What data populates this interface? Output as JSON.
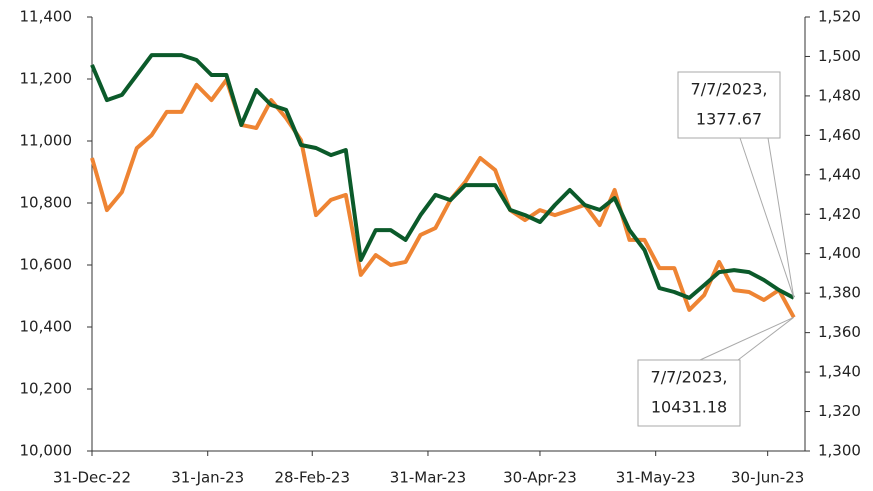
{
  "chart_data": {
    "type": "line",
    "x": [
      "2022-12-31",
      "2023-01-04",
      "2023-01-08",
      "2023-01-12",
      "2023-01-16",
      "2023-01-20",
      "2023-01-24",
      "2023-01-28",
      "2023-02-01",
      "2023-02-05",
      "2023-02-09",
      "2023-02-13",
      "2023-02-17",
      "2023-02-21",
      "2023-02-25",
      "2023-03-01",
      "2023-03-05",
      "2023-03-09",
      "2023-03-13",
      "2023-03-17",
      "2023-03-21",
      "2023-03-25",
      "2023-03-29",
      "2023-04-02",
      "2023-04-06",
      "2023-04-10",
      "2023-04-14",
      "2023-04-18",
      "2023-04-22",
      "2023-04-26",
      "2023-04-30",
      "2023-05-04",
      "2023-05-08",
      "2023-05-12",
      "2023-05-16",
      "2023-05-20",
      "2023-05-24",
      "2023-05-28",
      "2023-06-01",
      "2023-06-05",
      "2023-06-09",
      "2023-06-13",
      "2023-06-17",
      "2023-06-21",
      "2023-06-25",
      "2023-06-29",
      "2023-07-03",
      "2023-07-07"
    ],
    "series": [
      {
        "color": "#ee8433",
        "axis": "y",
        "values": [
          10945,
          10777,
          10835,
          10977,
          11019,
          11094,
          11094,
          11181,
          11132,
          11197,
          11052,
          11042,
          11132,
          11074,
          11003,
          10761,
          10810,
          10826,
          10568,
          10632,
          10600,
          10610,
          10697,
          10719,
          10810,
          10868,
          10945,
          10906,
          10777,
          10745,
          10777,
          10761,
          10777,
          10794,
          10729,
          10842,
          10681,
          10681,
          10590,
          10590,
          10455,
          10503,
          10610,
          10519,
          10513,
          10487,
          10519,
          10431.18
        ]
      },
      {
        "color": "#0b5a2a",
        "axis": "y2",
        "values": [
          1495.7,
          1477.9,
          1480.5,
          1490.6,
          1500.7,
          1500.7,
          1500.7,
          1498.2,
          1490.6,
          1490.6,
          1465.3,
          1483.0,
          1475.4,
          1472.9,
          1455.1,
          1453.6,
          1450.0,
          1452.6,
          1396.8,
          1412.0,
          1412.0,
          1407.0,
          1419.6,
          1429.8,
          1427.2,
          1434.8,
          1434.8,
          1434.8,
          1422.2,
          1419.6,
          1416.1,
          1424.7,
          1432.3,
          1424.7,
          1422.2,
          1428.2,
          1412.0,
          1401.9,
          1382.6,
          1380.6,
          1377.6,
          1384.1,
          1390.7,
          1391.7,
          1390.7,
          1386.7,
          1381.6,
          1377.67
        ]
      }
    ],
    "xlim": [
      "2022-12-31",
      "2023-07-10"
    ],
    "xticks": [
      {
        "value": "2022-12-31",
        "label": "31-Dec-22"
      },
      {
        "value": "2023-01-31",
        "label": "31-Jan-23"
      },
      {
        "value": "2023-02-28",
        "label": "28-Feb-23"
      },
      {
        "value": "2023-03-31",
        "label": "31-Mar-23"
      },
      {
        "value": "2023-04-30",
        "label": "30-Apr-23"
      },
      {
        "value": "2023-05-31",
        "label": "31-May-23"
      },
      {
        "value": "2023-06-30",
        "label": "30-Jun-23"
      }
    ],
    "ylim": [
      10000,
      11400
    ],
    "yticks": [
      {
        "value": 10000,
        "label": "10,000"
      },
      {
        "value": 10200,
        "label": "10,200"
      },
      {
        "value": 10400,
        "label": "10,400"
      },
      {
        "value": 10600,
        "label": "10,600"
      },
      {
        "value": 10800,
        "label": "10,800"
      },
      {
        "value": 11000,
        "label": "11,000"
      },
      {
        "value": 11200,
        "label": "11,200"
      },
      {
        "value": 11400,
        "label": "11,400"
      }
    ],
    "y2lim": [
      1300,
      1520
    ],
    "y2ticks": [
      {
        "value": 1300,
        "label": "1,300"
      },
      {
        "value": 1320,
        "label": "1,320"
      },
      {
        "value": 1340,
        "label": "1,340"
      },
      {
        "value": 1360,
        "label": "1,360"
      },
      {
        "value": 1380,
        "label": "1,380"
      },
      {
        "value": 1400,
        "label": "1,400"
      },
      {
        "value": 1420,
        "label": "1,420"
      },
      {
        "value": 1440,
        "label": "1,440"
      },
      {
        "value": 1460,
        "label": "1,460"
      },
      {
        "value": 1480,
        "label": "1,480"
      },
      {
        "value": 1500,
        "label": "1,500"
      },
      {
        "value": 1520,
        "label": "1,520"
      }
    ],
    "annotations": [
      {
        "lines": [
          "7/7/2023,",
          "1377.67"
        ]
      },
      {
        "lines": [
          "7/7/2023,",
          "10431.18"
        ]
      }
    ],
    "grid": false
  }
}
